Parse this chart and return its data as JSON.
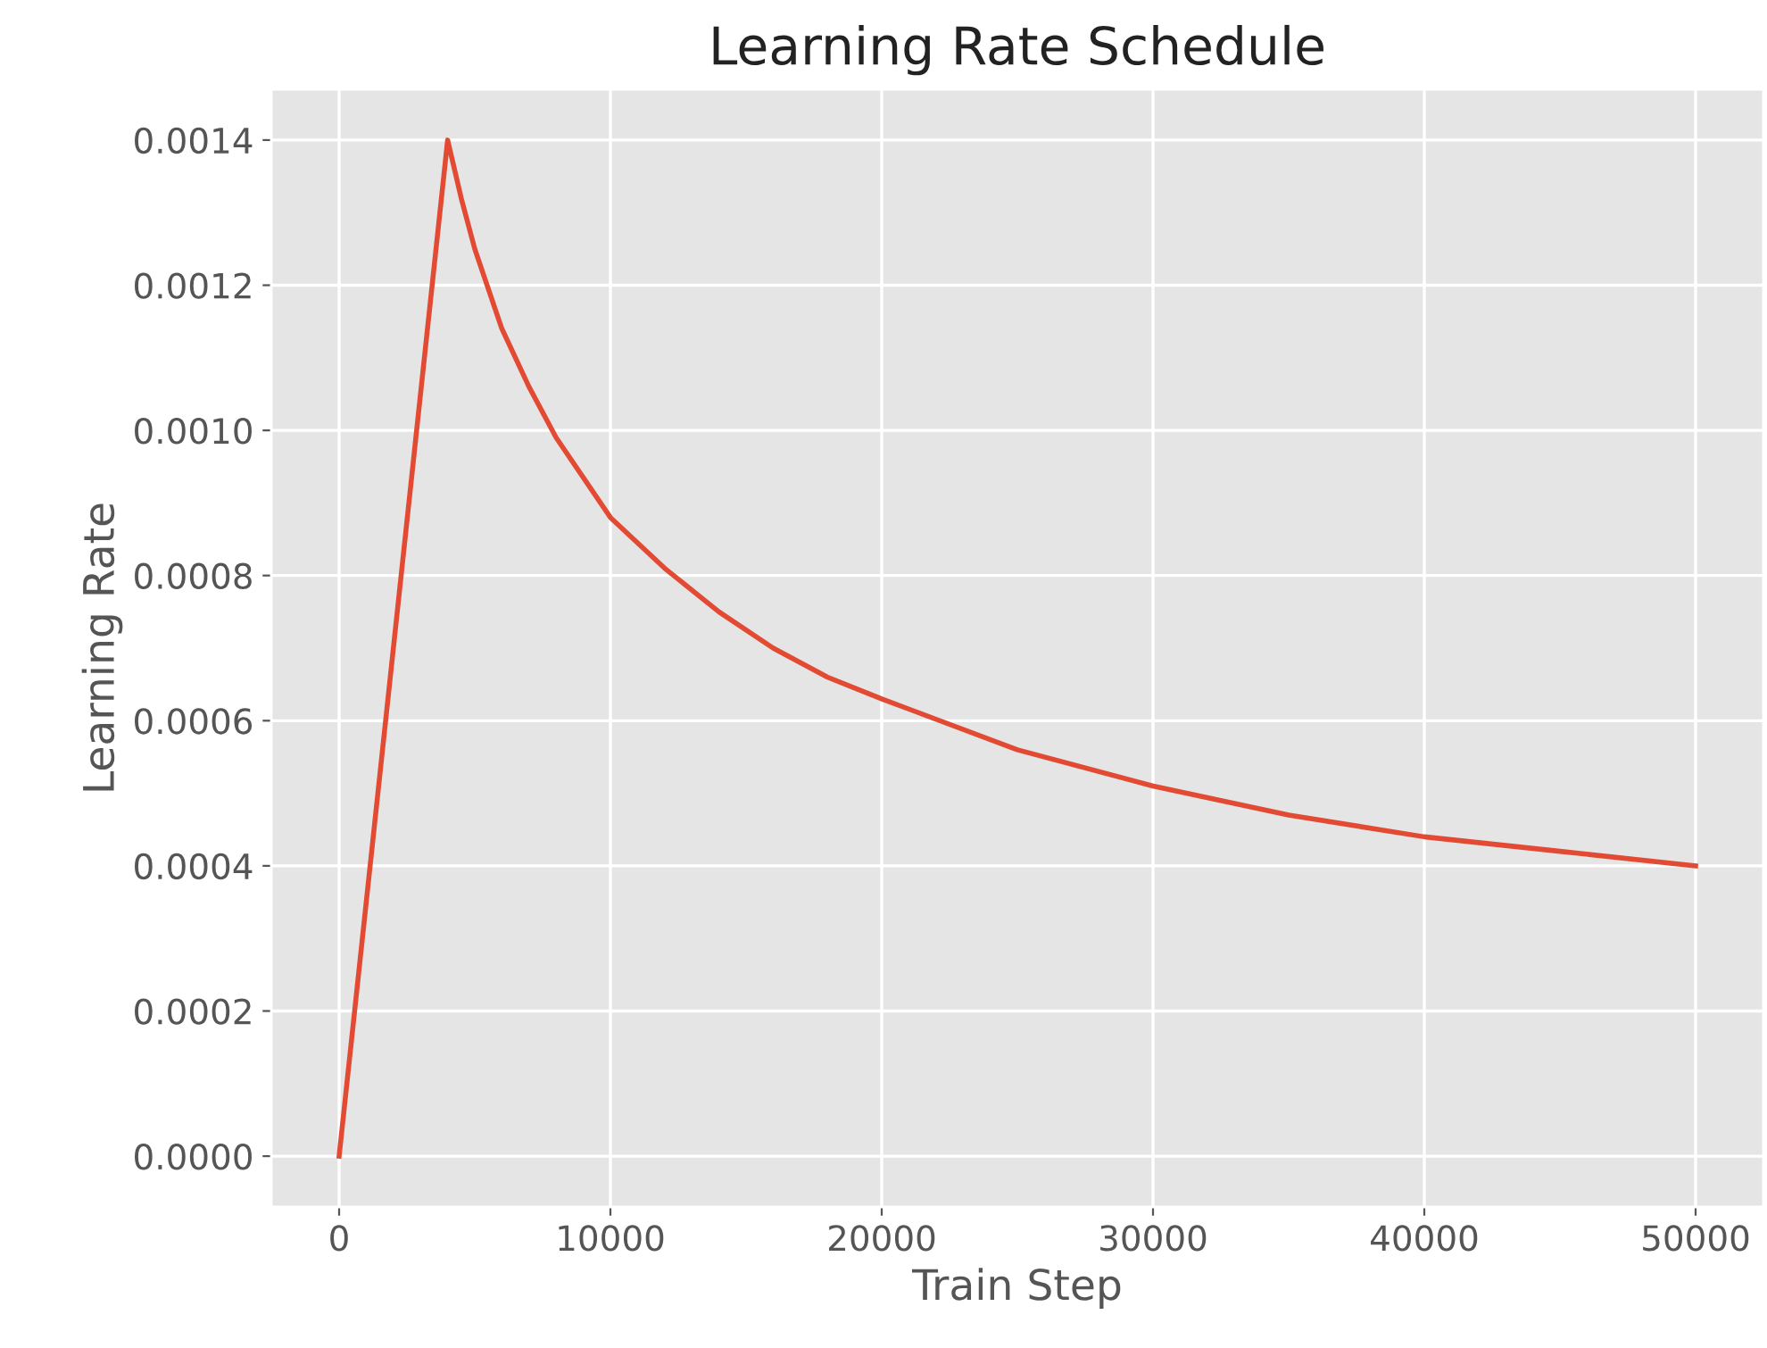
{
  "chart_data": {
    "type": "line",
    "title": "Learning Rate Schedule",
    "xlabel": "Train Step",
    "ylabel": "Learning Rate",
    "x": [
      0,
      4000,
      4500,
      5000,
      6000,
      7000,
      8000,
      10000,
      12000,
      14000,
      16000,
      18000,
      20000,
      25000,
      30000,
      35000,
      40000,
      45000,
      50000
    ],
    "series": [
      {
        "color": "#e24a33",
        "values": [
          0,
          0.0014,
          0.00132,
          0.00125,
          0.00114,
          0.00106,
          0.00099,
          0.00088,
          0.00081,
          0.00075,
          0.0007,
          0.00066,
          0.00063,
          0.00056,
          0.00051,
          0.00047,
          0.00044,
          0.00042,
          0.0004
        ]
      }
    ],
    "xlim": [
      -2500,
      52500
    ],
    "xticks": [
      0,
      10000,
      20000,
      30000,
      40000,
      50000
    ],
    "ylim": [
      -7e-05,
      0.00147
    ],
    "yticks": [
      {
        "value": 0,
        "label": "0.0000"
      },
      {
        "value": 0.0002,
        "label": "0.0002"
      },
      {
        "value": 0.0004,
        "label": "0.0004"
      },
      {
        "value": 0.0006,
        "label": "0.0006"
      },
      {
        "value": 0.0008,
        "label": "0.0008"
      },
      {
        "value": 0.001,
        "label": "0.0010"
      },
      {
        "value": 0.0012,
        "label": "0.0012"
      },
      {
        "value": 0.0014,
        "label": "0.0014"
      }
    ],
    "grid": true,
    "marker": "none",
    "line_style": "solid"
  }
}
